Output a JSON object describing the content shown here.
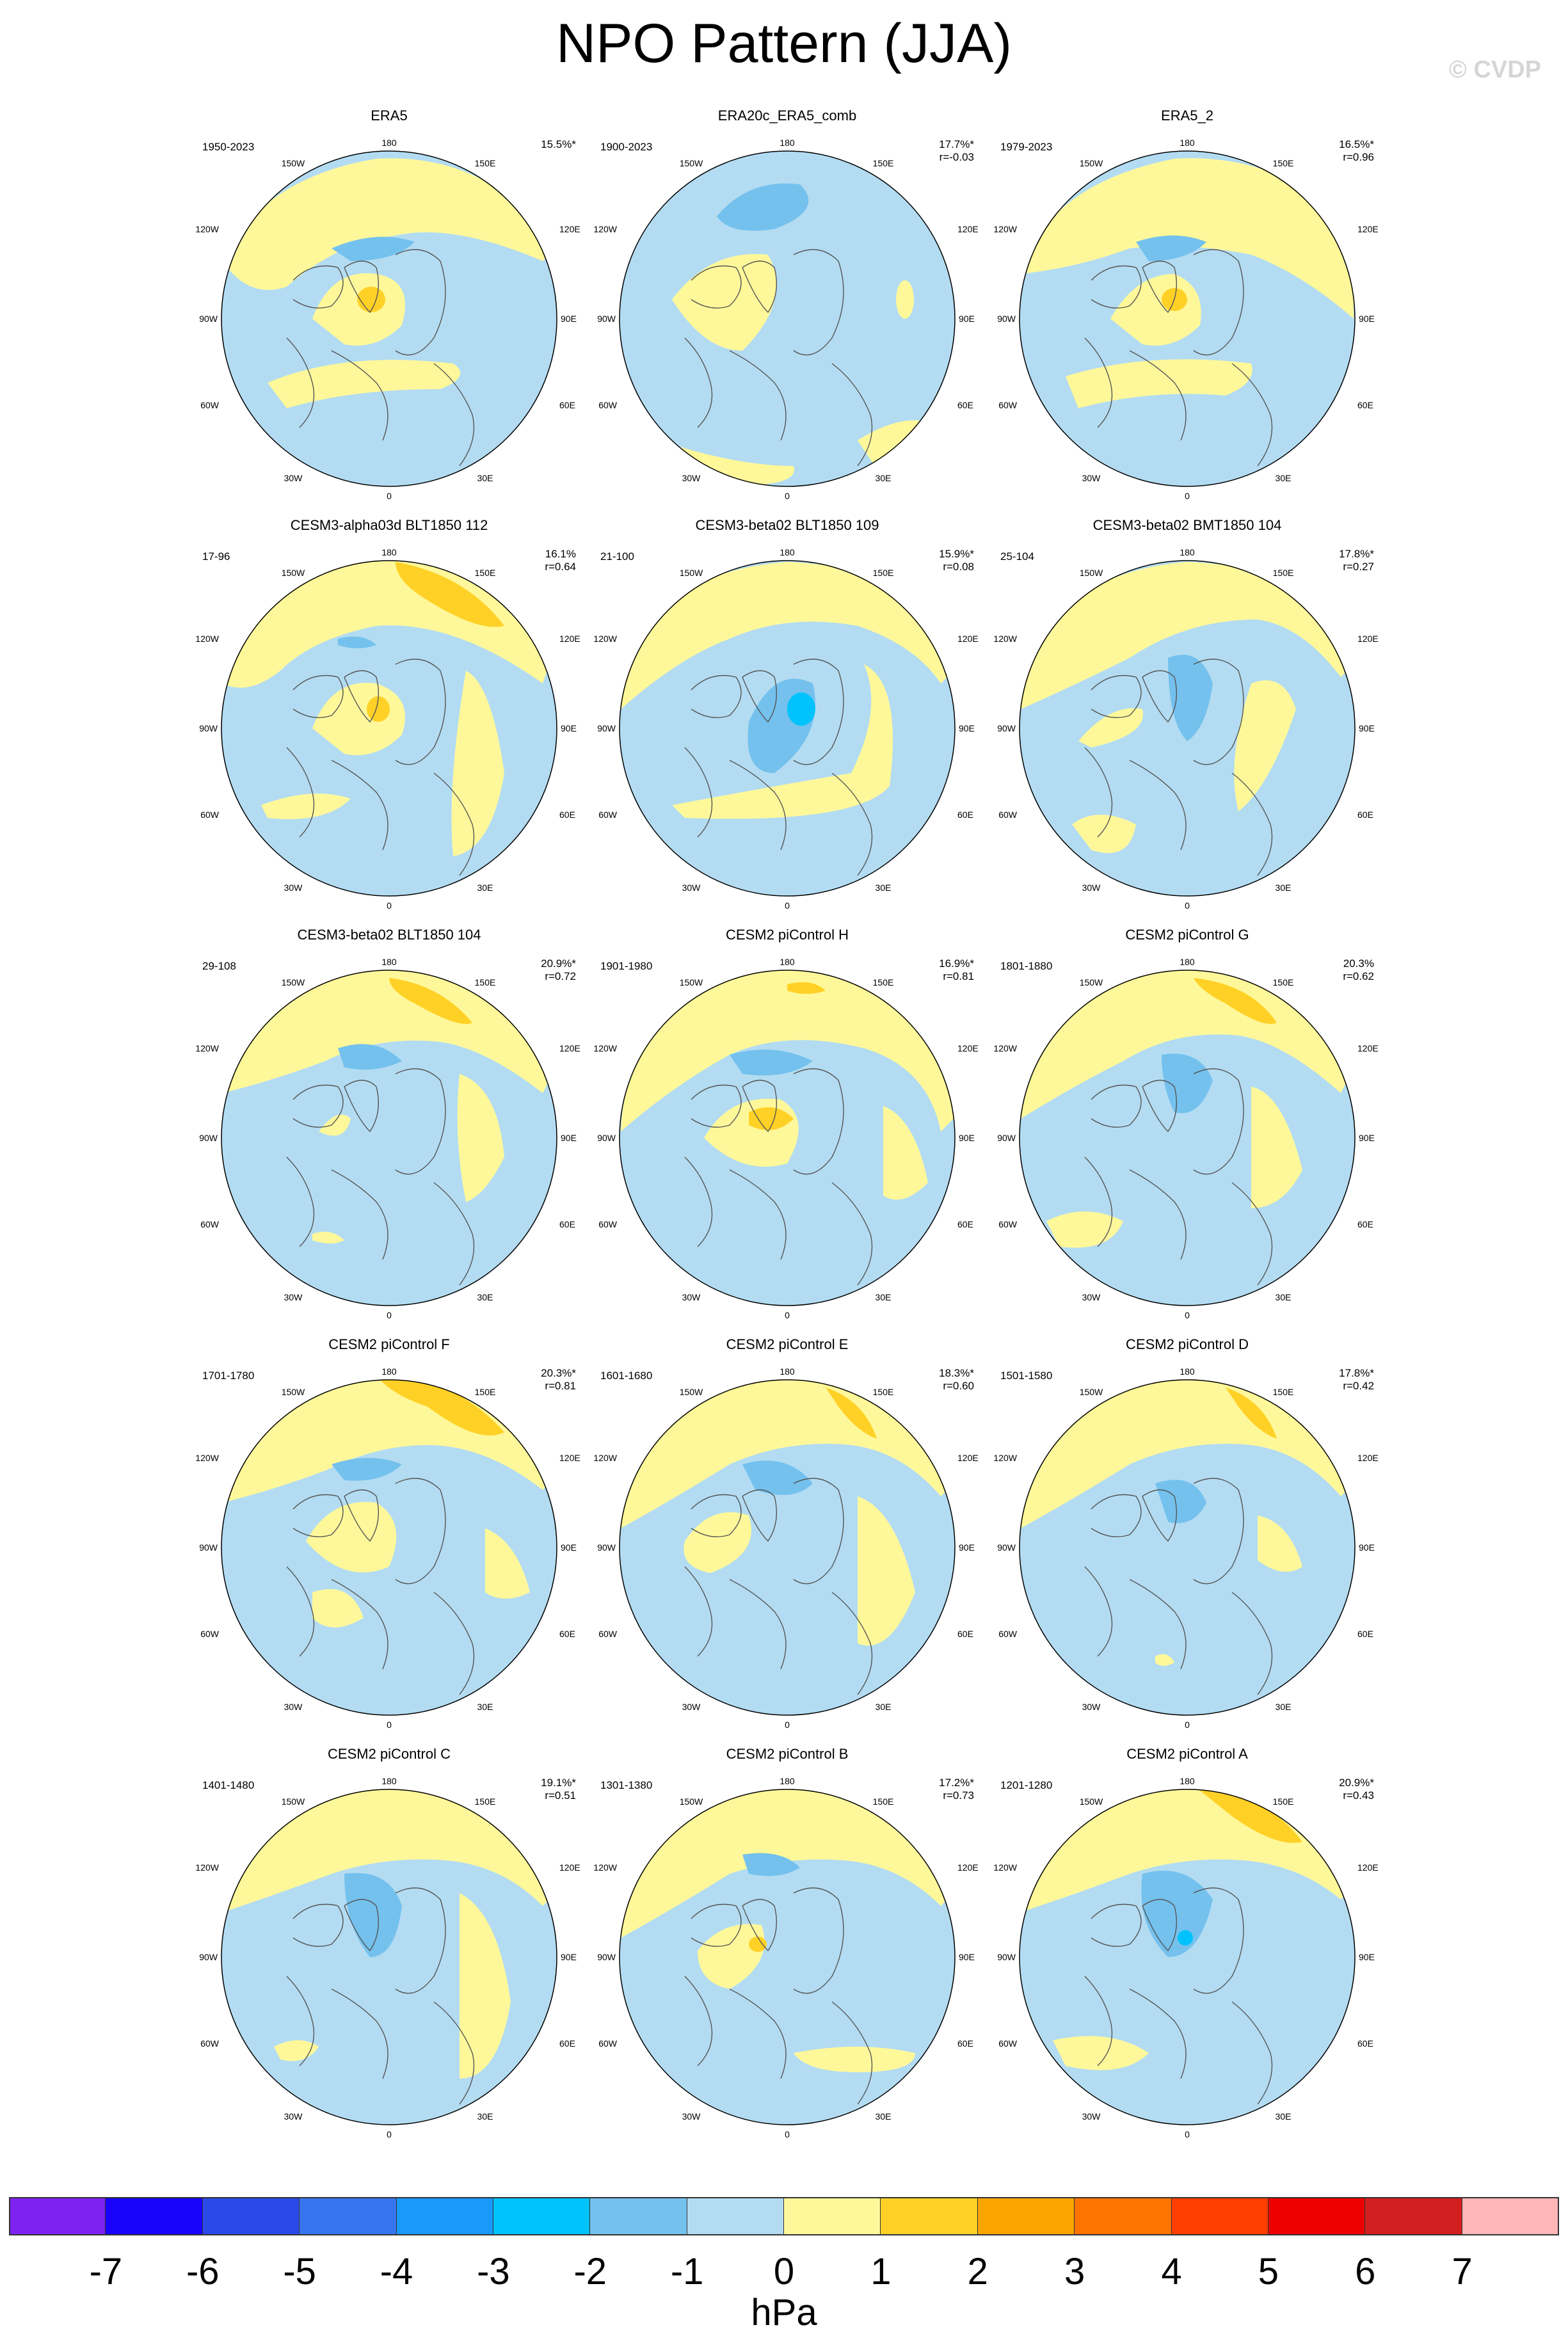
{
  "title": "NPO Pattern (JJA)",
  "watermark": "© CVDP",
  "longitude_labels": {
    "top": "180",
    "bottom": "0",
    "ul": "150W",
    "ur": "150E",
    "lu": "120W",
    "ru": "120E",
    "l": "90W",
    "r": "90E",
    "ll": "60W",
    "rl": "60E",
    "bl": "30W",
    "br": "30E"
  },
  "colors": {
    "c_neg1": "#b3dcf2",
    "c_neg2": "#74c1ee",
    "c_neg3": "#00c2fd",
    "c_pos1": "#fff89a",
    "c_pos2": "#ffd127",
    "coast": "#555555"
  },
  "panels": [
    {
      "title": "ERA5",
      "period": "1950-2023",
      "stat1": "15.5%*",
      "stat2": ""
    },
    {
      "title": "ERA20c_ERA5_comb",
      "period": "1900-2023",
      "stat1": "17.7%*",
      "stat2": "r=-0.03"
    },
    {
      "title": "ERA5_2",
      "period": "1979-2023",
      "stat1": "16.5%*",
      "stat2": "r=0.96"
    },
    {
      "title": "CESM3-alpha03d BLT1850 112",
      "period": "17-96",
      "stat1": "16.1%",
      "stat2": "r=0.64"
    },
    {
      "title": "CESM3-beta02 BLT1850 109",
      "period": "21-100",
      "stat1": "15.9%*",
      "stat2": "r=0.08"
    },
    {
      "title": "CESM3-beta02 BMT1850 104",
      "period": "25-104",
      "stat1": "17.8%*",
      "stat2": "r=0.27"
    },
    {
      "title": "CESM3-beta02 BLT1850 104",
      "period": "29-108",
      "stat1": "20.9%*",
      "stat2": "r=0.72"
    },
    {
      "title": "CESM2 piControl H",
      "period": "1901-1980",
      "stat1": "16.9%*",
      "stat2": "r=0.81"
    },
    {
      "title": "CESM2 piControl G",
      "period": "1801-1880",
      "stat1": "20.3%",
      "stat2": "r=0.62"
    },
    {
      "title": "CESM2 piControl F",
      "period": "1701-1780",
      "stat1": "20.3%*",
      "stat2": "r=0.81"
    },
    {
      "title": "CESM2 piControl E",
      "period": "1601-1680",
      "stat1": "18.3%*",
      "stat2": "r=0.60"
    },
    {
      "title": "CESM2 piControl D",
      "period": "1501-1580",
      "stat1": "17.8%*",
      "stat2": "r=0.42"
    },
    {
      "title": "CESM2 piControl C",
      "period": "1401-1480",
      "stat1": "19.1%*",
      "stat2": "r=0.51"
    },
    {
      "title": "CESM2 piControl B",
      "period": "1301-1380",
      "stat1": "17.2%*",
      "stat2": "r=0.73"
    },
    {
      "title": "CESM2 piControl A",
      "period": "1201-1280",
      "stat1": "20.9%*",
      "stat2": "r=0.43"
    }
  ],
  "colorbar": {
    "unit": "hPa",
    "ticks": [
      "-7",
      "-6",
      "-5",
      "-4",
      "-3",
      "-2",
      "-1",
      "0",
      "1",
      "2",
      "3",
      "4",
      "5",
      "6",
      "7"
    ],
    "colors": [
      "#7d22f0",
      "#1a03fc",
      "#2b49e7",
      "#3675ee",
      "#1999fa",
      "#00c2fd",
      "#74c1ee",
      "#b3dcf2",
      "#fff89a",
      "#ffd127",
      "#fca500",
      "#fd7400",
      "#ff3f00",
      "#ec0000",
      "#d21e1e",
      "#ffb6b6"
    ]
  }
}
